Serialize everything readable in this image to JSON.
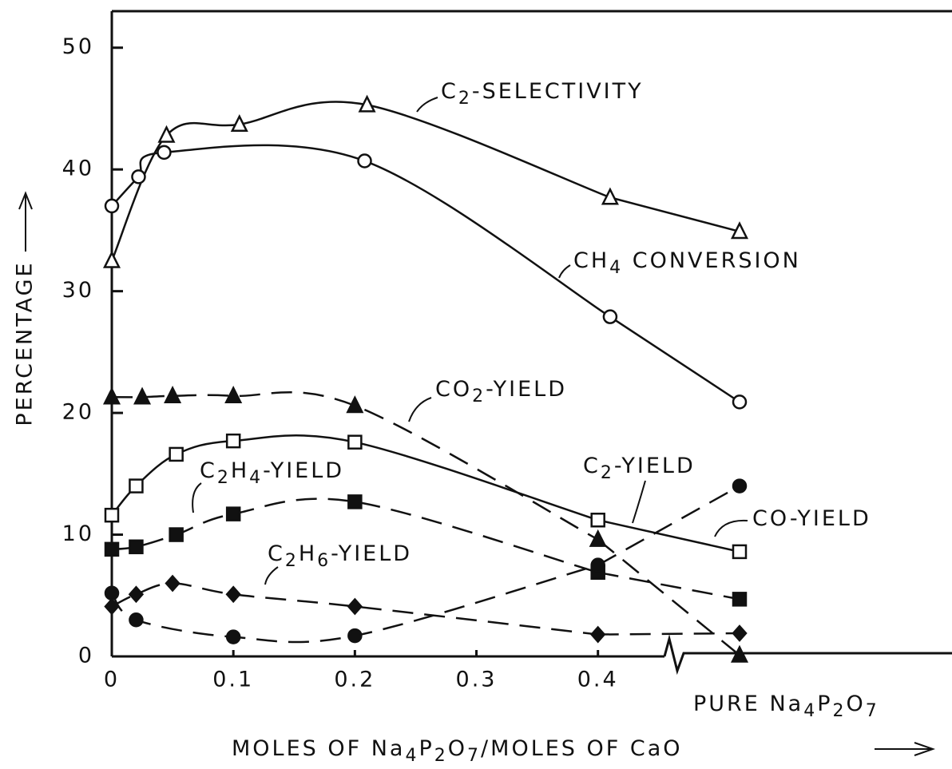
{
  "chart_data": {
    "type": "line",
    "xlabel": "MOLES OF Na4P2O7/MOLES OF CaO",
    "ylabel": "PERCENTAGE",
    "break_label": "PURE Na4P2O7",
    "xlim": [
      0,
      0.46
    ],
    "xticks": [
      0,
      0.1,
      0.2,
      0.3,
      0.4
    ],
    "ylim": [
      0,
      53
    ],
    "yticks": [
      0,
      10,
      20,
      30,
      40,
      50
    ],
    "series": [
      {
        "name": "C2-SELECTIVITY",
        "color": "#111111",
        "dashed": false,
        "marker": "triangle-open",
        "x": [
          0,
          0.045,
          0.105,
          0.21,
          0.41
        ],
        "values": [
          32.5,
          42.8,
          43.7,
          45.3,
          37.7
        ],
        "pure": 34.9
      },
      {
        "name": "CH4 CONVERSION",
        "color": "#111111",
        "dashed": false,
        "marker": "circle-open",
        "x": [
          0,
          0.022,
          0.043,
          0.208,
          0.41
        ],
        "values": [
          37.0,
          39.4,
          41.4,
          40.7,
          27.9
        ],
        "pure": 20.9
      },
      {
        "name": "CO2-YIELD",
        "color": "#111111",
        "dashed": true,
        "marker": "triangle-filled",
        "x": [
          0,
          0.025,
          0.05,
          0.1,
          0.2,
          0.4
        ],
        "values": [
          21.3,
          21.3,
          21.4,
          21.4,
          20.6,
          9.6
        ],
        "pure": 0.1
      },
      {
        "name": "C2H4-YIELD",
        "color": "#111111",
        "dashed": true,
        "marker": "square-filled",
        "x": [
          0,
          0.02,
          0.053,
          0.1,
          0.2,
          0.4
        ],
        "values": [
          8.8,
          9.0,
          10.0,
          11.7,
          12.7,
          6.9
        ],
        "pure": 4.7
      },
      {
        "name": "C2-YIELD",
        "color": "#111111",
        "dashed": false,
        "marker": "square-open",
        "x": [
          0,
          0.02,
          0.053,
          0.1,
          0.2,
          0.4
        ],
        "values": [
          11.6,
          14.0,
          16.6,
          17.7,
          17.6,
          11.2
        ],
        "pure": 8.6
      },
      {
        "name": "CO-YIELD",
        "color": "#111111",
        "dashed": true,
        "marker": "circle-filled",
        "x": [
          0,
          0.02,
          0.1,
          0.2,
          0.4
        ],
        "values": [
          5.2,
          3.0,
          1.6,
          1.7,
          7.5
        ],
        "pure": 14.0
      },
      {
        "name": "C2H6-YIELD",
        "color": "#111111",
        "dashed": true,
        "marker": "diamond-filled",
        "x": [
          0,
          0.02,
          0.05,
          0.1,
          0.2,
          0.4
        ],
        "values": [
          4.1,
          5.1,
          6.0,
          5.1,
          4.1,
          1.8
        ],
        "pure": 1.9
      }
    ]
  }
}
